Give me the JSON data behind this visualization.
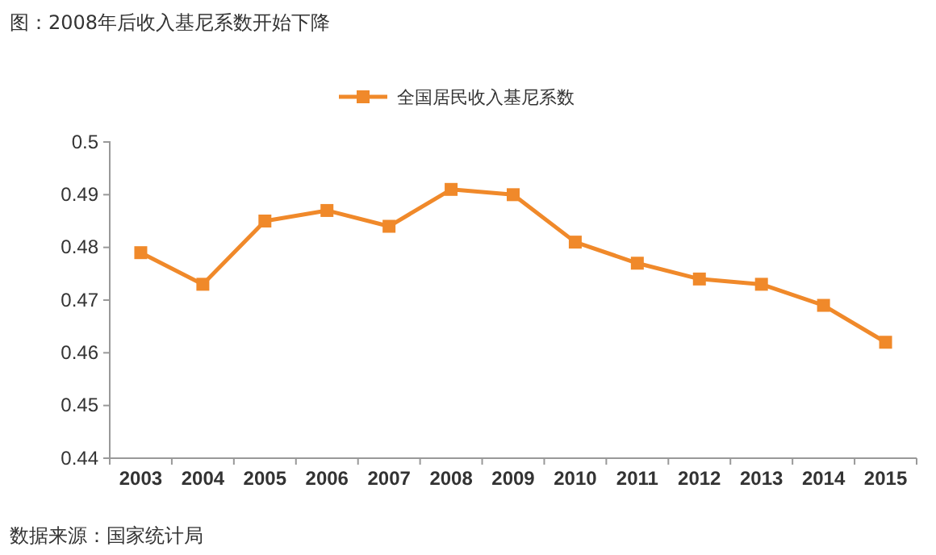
{
  "chart_data": {
    "type": "line",
    "title": "图：2008年后收入基尼系数开始下降",
    "categories": [
      "2003",
      "2004",
      "2005",
      "2006",
      "2007",
      "2008",
      "2009",
      "2010",
      "2011",
      "2012",
      "2013",
      "2014",
      "2015"
    ],
    "series": [
      {
        "name": "全国居民收入基尼系数",
        "color": "#f0892a",
        "values": [
          0.479,
          0.473,
          0.485,
          0.487,
          0.484,
          0.491,
          0.49,
          0.481,
          0.477,
          0.474,
          0.473,
          0.469,
          0.462
        ]
      }
    ],
    "ylim": [
      0.44,
      0.5
    ],
    "yticks": [
      0.44,
      0.45,
      0.46,
      0.47,
      0.48,
      0.49,
      0.5
    ],
    "marker": "square",
    "legend": "top",
    "grid": false,
    "annotations": [
      "数据来源：国家统计局"
    ]
  }
}
